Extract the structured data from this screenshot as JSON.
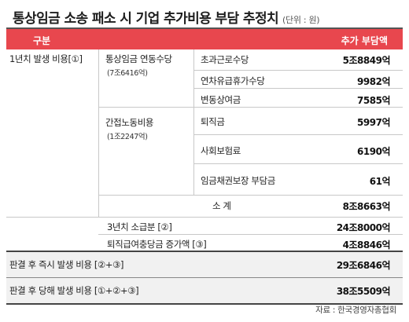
{
  "title": "통상임금 소송 패소 시 기업 추가비용 부담 추정치",
  "unit": "(단위 : 원)",
  "header": {
    "col1": "구분",
    "col2": "추가 부담액"
  },
  "rows": {
    "year1_label": "1년치 발생 비용[①]",
    "ordinary_wage_label": "통상임금 연동수당",
    "ordinary_wage_sub": "(7조6416억)",
    "indirect_label": "간접노동비용",
    "indirect_sub": "(1조2247억)",
    "items": [
      {
        "label": "초과근로수당",
        "value": "5조8849억"
      },
      {
        "label": "연차유급휴가수당",
        "value": "9982억"
      },
      {
        "label": "변동상여금",
        "value": "7585억"
      },
      {
        "label": "퇴직금",
        "value": "5997억"
      },
      {
        "label": "사회보험료",
        "value": "6190억"
      },
      {
        "label": "임금채권보장 부담금",
        "value": "61억"
      }
    ],
    "subtotal_label": "소   계",
    "subtotal_value": "8조8663억",
    "back3_label": "3년치 소급분 [②]",
    "back3_value": "24조8000억",
    "retire_label": "퇴직급여충당금 증가액 [③]",
    "retire_value": "4조8846억",
    "immediate_label": "판결 후 즉시 발생 비용 [②+③]",
    "immediate_value": "29조6846억",
    "sameyear_label": "판결 후 당해 발생 비용 [①+②+③]",
    "sameyear_value": "38조5509억"
  },
  "source": "자료 : 한국경영자총협회"
}
